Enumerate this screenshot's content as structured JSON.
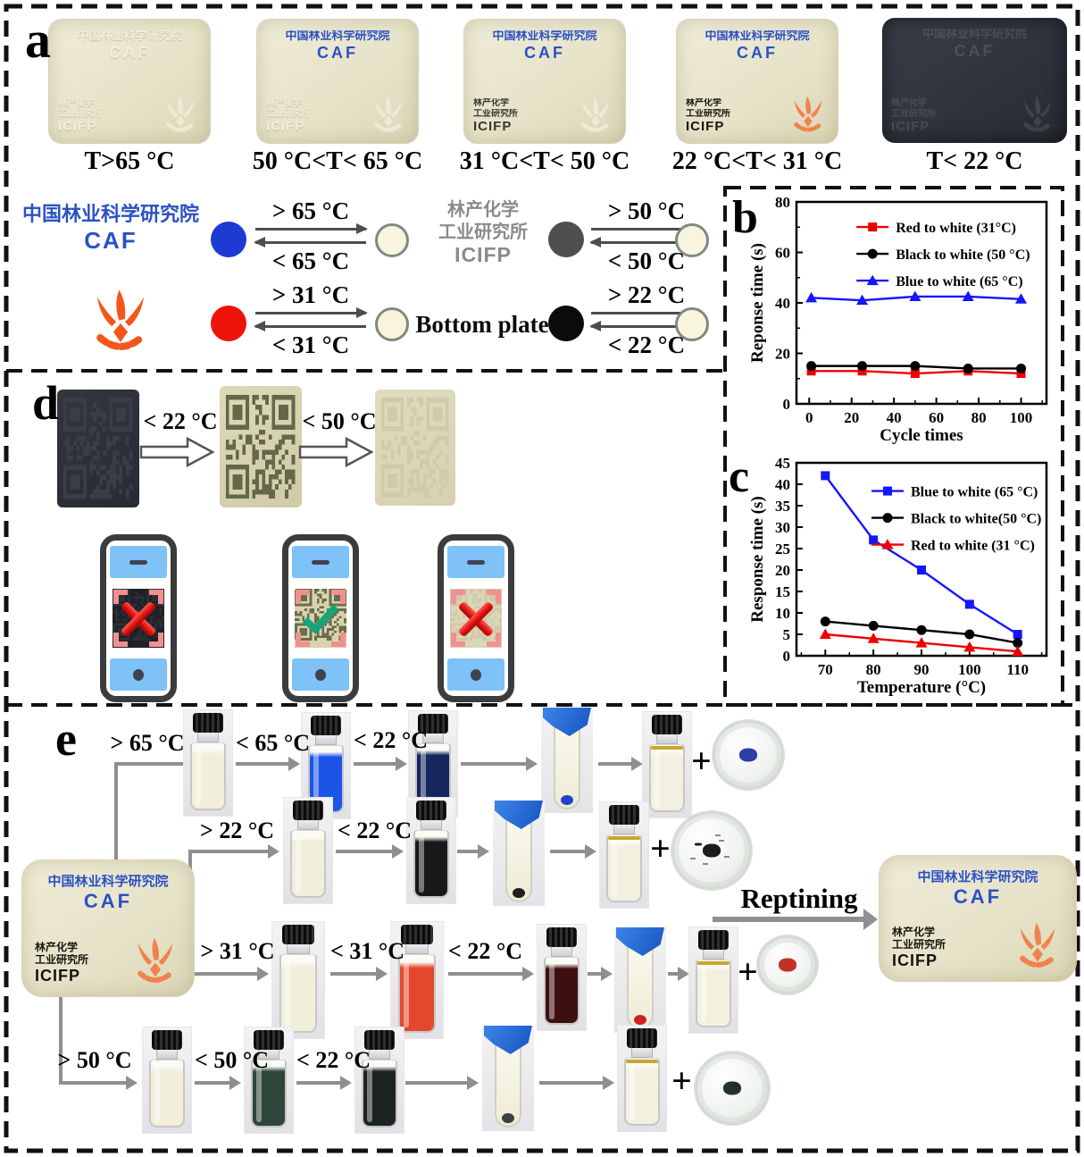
{
  "figure": {
    "panels": {
      "a": "a",
      "b": "b",
      "c": "c",
      "d": "d",
      "e": "e"
    }
  },
  "panel_a": {
    "card_labels": [
      "T>65 °C",
      "50 °C<T< 65 °C",
      "31 °C<T< 50 °C",
      "22 °C<T< 31 °C",
      "T< 22 °C"
    ],
    "texts": {
      "inst_cn": "中国林业科学研究院",
      "inst_en": "CAF",
      "icifp_cn1": "林产化学",
      "icifp_cn2": "工业研究所",
      "icifp_en": "ICIFP",
      "bottom_plate": "Bottom plate"
    },
    "transitions": [
      {
        "above": "> 65 °C",
        "below": "< 65 °C"
      },
      {
        "above": "> 50 °C",
        "below": "< 50 °C"
      },
      {
        "above": "> 31 °C",
        "below": "< 31 °C"
      },
      {
        "above": "> 22 °C",
        "below": "< 22 °C"
      }
    ],
    "colors": {
      "ink_blue": "#2b51c4",
      "ink_gray": "#4f4f4f",
      "ink_red": "#ee1309",
      "ink_black": "#0b0b0b",
      "plate_cream": "#f8f4dd",
      "logo_orange": "#f3561b"
    }
  },
  "chart_data": [
    {
      "id": "b",
      "type": "line",
      "title": "",
      "xlabel": "Cycle times",
      "ylabel": "Reponse time (s)",
      "xlim": [
        -6,
        112
      ],
      "ylim": [
        0,
        80
      ],
      "xticks": [
        0,
        20,
        40,
        60,
        80,
        100
      ],
      "yticks": [
        0,
        20,
        40,
        60,
        80
      ],
      "xminor": [
        10,
        30,
        50,
        70,
        90,
        110
      ],
      "yminor": [
        10,
        30,
        50,
        70
      ],
      "grid": false,
      "legend_position": "top-center",
      "legend_x": 0.24,
      "legend_y": 0.08,
      "x": [
        1,
        25,
        50,
        75,
        100
      ],
      "series": [
        {
          "name": "Red to white (31°C)",
          "color": "#ee0000",
          "marker": "square",
          "values": [
            13,
            13,
            12,
            13,
            12
          ]
        },
        {
          "name": "Black to white (50 °C)",
          "color": "#000000",
          "marker": "circle",
          "values": [
            15,
            15,
            15,
            14,
            14
          ]
        },
        {
          "name": "Blue to white (65 °C)",
          "color": "#1515ff",
          "marker": "triangle",
          "values": [
            42,
            41,
            42.5,
            42.5,
            41.5
          ]
        }
      ]
    },
    {
      "id": "c",
      "type": "line",
      "title": "",
      "xlabel": "Temperature (°C)",
      "ylabel": "Response time (s)",
      "xlim": [
        64,
        116
      ],
      "ylim": [
        0,
        45
      ],
      "xticks": [
        70,
        80,
        90,
        100,
        110
      ],
      "yticks": [
        0,
        5,
        10,
        15,
        20,
        25,
        30,
        35,
        40,
        45
      ],
      "xminor": [
        65,
        75,
        85,
        95,
        105,
        115
      ],
      "yminor": [],
      "grid": false,
      "legend_position": "top-center",
      "legend_x": 0.3,
      "legend_y": 0.1,
      "x": [
        70,
        80,
        90,
        100,
        110
      ],
      "series": [
        {
          "name": "Blue to white (65 °C)",
          "color": "#1515ff",
          "marker": "square",
          "values": [
            42,
            27,
            20,
            12,
            5
          ]
        },
        {
          "name": "Black to white(50 °C)",
          "color": "#000000",
          "marker": "circle",
          "values": [
            8,
            7,
            6,
            5,
            3
          ]
        },
        {
          "name": "Red to white (31 °C)",
          "color": "#ee0000",
          "marker": "triangle",
          "values": [
            5,
            4,
            3,
            2,
            1
          ]
        }
      ]
    }
  ],
  "panel_d": {
    "step1": "< 22 °C",
    "step2": "< 50 °C",
    "scan_results": [
      "fail",
      "success",
      "fail"
    ]
  },
  "panel_e": {
    "plus": "+",
    "reprint_label": "Reptining",
    "row1": {
      "s1": "> 65 °C",
      "s2": "< 65 °C",
      "s3": "< 22 °C"
    },
    "row2": {
      "s1": "> 22 °C",
      "s2": "< 22 °C"
    },
    "row3": {
      "s1": "> 31 °C",
      "s2": "< 31 °C",
      "s3": "< 22 °C"
    },
    "row4": {
      "s1": "> 50 °C",
      "s2": "< 50 °C",
      "s3": "< 22 °C"
    },
    "vial_colors": {
      "white": "#f1eeda",
      "blue": "#1c55e6",
      "navy": "#16275e",
      "black": "#181818",
      "red": "#e5472e",
      "maroon": "#3d0f10",
      "green": "#31463a",
      "dark_green": "#1c2420",
      "clear": "#f3f0df"
    }
  }
}
